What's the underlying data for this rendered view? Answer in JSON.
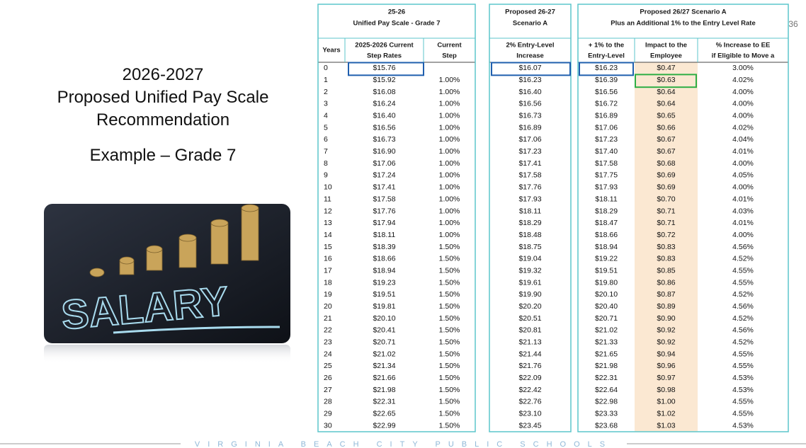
{
  "slide": {
    "title_lines": [
      "2026-2027",
      "Proposed Unified Pay Scale",
      "Recommendation"
    ],
    "example": "Example – Grade 7",
    "image_text": "SALARY",
    "page_number": "36",
    "footer": "VIRGINIA BEACH CITY PUBLIC SCHOOLS"
  },
  "table": {
    "groups": [
      {
        "title": [
          "25-26",
          "Unified Pay Scale  - Grade 7"
        ]
      },
      {
        "title": [
          "Proposed 26-27",
          "Scenario A"
        ]
      },
      {
        "title": [
          "Proposed 26/27 Scenario A",
          "Plus an Additional 1% to the Entry Level Rate"
        ]
      }
    ],
    "columns": [
      [
        "Years"
      ],
      [
        "2025-2026 Current",
        "Step Rates"
      ],
      [
        "Current",
        "Step"
      ],
      [
        "2% Entry-Level",
        "Increase"
      ],
      [
        "+ 1% to the",
        "Entry-Level"
      ],
      [
        "Impact to the",
        "Employee"
      ],
      [
        "% Increase to EE",
        "if Eligible to Move a"
      ]
    ],
    "rows": [
      [
        "0",
        "$15.76",
        null,
        "$16.07",
        "$16.23",
        "$0.47",
        "3.00%"
      ],
      [
        "1",
        "$15.92",
        "1.00%",
        "$16.23",
        "$16.39",
        "$0.63",
        "4.02%"
      ],
      [
        "2",
        "$16.08",
        "1.00%",
        "$16.40",
        "$16.56",
        "$0.64",
        "4.00%"
      ],
      [
        "3",
        "$16.24",
        "1.00%",
        "$16.56",
        "$16.72",
        "$0.64",
        "4.00%"
      ],
      [
        "4",
        "$16.40",
        "1.00%",
        "$16.73",
        "$16.89",
        "$0.65",
        "4.00%"
      ],
      [
        "5",
        "$16.56",
        "1.00%",
        "$16.89",
        "$17.06",
        "$0.66",
        "4.02%"
      ],
      [
        "6",
        "$16.73",
        "1.00%",
        "$17.06",
        "$17.23",
        "$0.67",
        "4.04%"
      ],
      [
        "7",
        "$16.90",
        "1.00%",
        "$17.23",
        "$17.40",
        "$0.67",
        "4.01%"
      ],
      [
        "8",
        "$17.06",
        "1.00%",
        "$17.41",
        "$17.58",
        "$0.68",
        "4.00%"
      ],
      [
        "9",
        "$17.24",
        "1.00%",
        "$17.58",
        "$17.75",
        "$0.69",
        "4.05%"
      ],
      [
        "10",
        "$17.41",
        "1.00%",
        "$17.76",
        "$17.93",
        "$0.69",
        "4.00%"
      ],
      [
        "11",
        "$17.58",
        "1.00%",
        "$17.93",
        "$18.11",
        "$0.70",
        "4.01%"
      ],
      [
        "12",
        "$17.76",
        "1.00%",
        "$18.11",
        "$18.29",
        "$0.71",
        "4.03%"
      ],
      [
        "13",
        "$17.94",
        "1.00%",
        "$18.29",
        "$18.47",
        "$0.71",
        "4.01%"
      ],
      [
        "14",
        "$18.11",
        "1.00%",
        "$18.48",
        "$18.66",
        "$0.72",
        "4.00%"
      ],
      [
        "15",
        "$18.39",
        "1.50%",
        "$18.75",
        "$18.94",
        "$0.83",
        "4.56%"
      ],
      [
        "16",
        "$18.66",
        "1.50%",
        "$19.04",
        "$19.22",
        "$0.83",
        "4.52%"
      ],
      [
        "17",
        "$18.94",
        "1.50%",
        "$19.32",
        "$19.51",
        "$0.85",
        "4.55%"
      ],
      [
        "18",
        "$19.23",
        "1.50%",
        "$19.61",
        "$19.80",
        "$0.86",
        "4.55%"
      ],
      [
        "19",
        "$19.51",
        "1.50%",
        "$19.90",
        "$20.10",
        "$0.87",
        "4.52%"
      ],
      [
        "20",
        "$19.81",
        "1.50%",
        "$20.20",
        "$20.40",
        "$0.89",
        "4.56%"
      ],
      [
        "21",
        "$20.10",
        "1.50%",
        "$20.51",
        "$20.71",
        "$0.90",
        "4.52%"
      ],
      [
        "22",
        "$20.41",
        "1.50%",
        "$20.81",
        "$21.02",
        "$0.92",
        "4.56%"
      ],
      [
        "23",
        "$20.71",
        "1.50%",
        "$21.13",
        "$21.33",
        "$0.92",
        "4.52%"
      ],
      [
        "24",
        "$21.02",
        "1.50%",
        "$21.44",
        "$21.65",
        "$0.94",
        "4.55%"
      ],
      [
        "25",
        "$21.34",
        "1.50%",
        "$21.76",
        "$21.98",
        "$0.96",
        "4.55%"
      ],
      [
        "26",
        "$21.66",
        "1.50%",
        "$22.09",
        "$22.31",
        "$0.97",
        "4.53%"
      ],
      [
        "27",
        "$21.98",
        "1.50%",
        "$22.42",
        "$22.64",
        "$0.98",
        "4.53%"
      ],
      [
        "28",
        "$22.31",
        "1.50%",
        "$22.76",
        "$22.98",
        "$1.00",
        "4.55%"
      ],
      [
        "29",
        "$22.65",
        "1.50%",
        "$23.10",
        "$23.33",
        "$1.02",
        "4.55%"
      ],
      [
        "30",
        "$22.99",
        "1.50%",
        "$23.45",
        "$23.68",
        "$1.03",
        "4.53%"
      ]
    ]
  }
}
